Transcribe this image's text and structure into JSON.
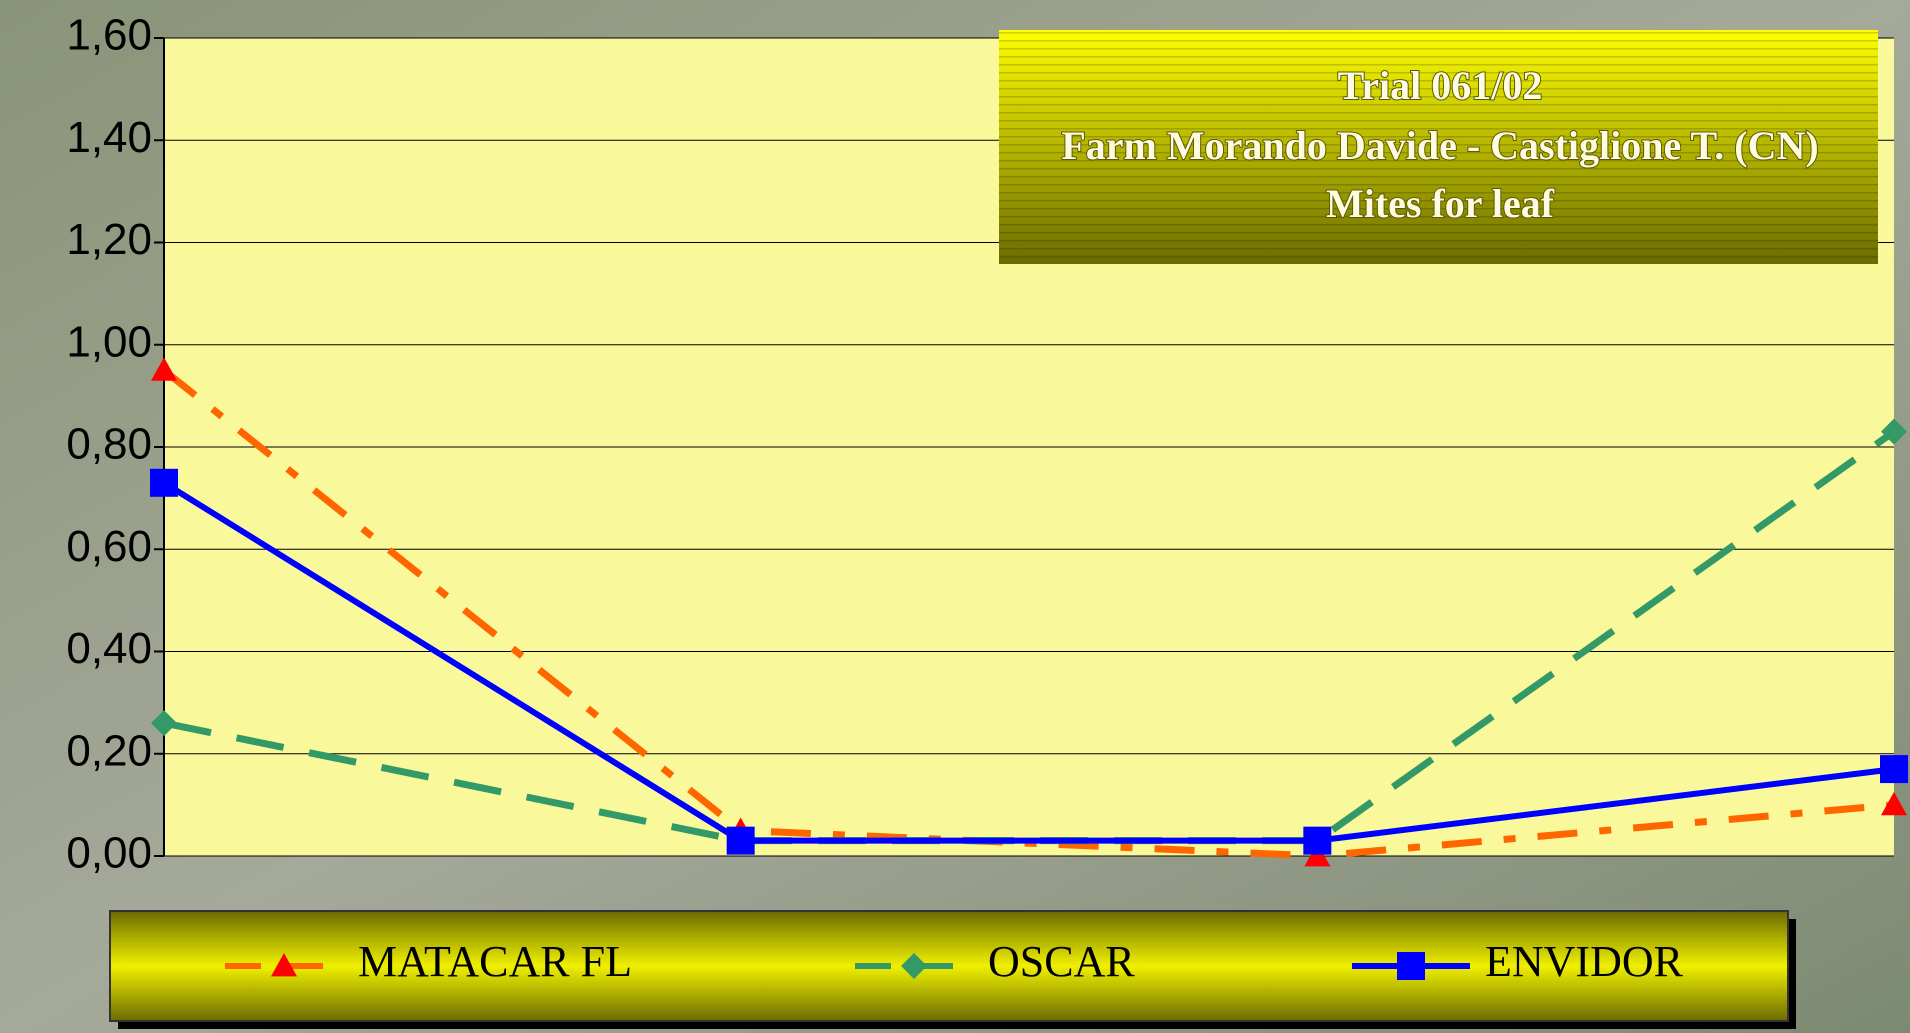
{
  "chart_data": {
    "type": "line",
    "title_lines": [
      "Trial 061/02",
      "Farm Morando Davide - Castiglione T. (CN)",
      "Mites for leaf"
    ],
    "categories": [
      null,
      null,
      null,
      null
    ],
    "series": [
      {
        "name": "MATACAR FL",
        "color": "#ff6600",
        "marker": "triangle",
        "marker_color": "#ff0000",
        "line_style": "dash-dot",
        "values": [
          0.95,
          0.05,
          0.0,
          0.1
        ]
      },
      {
        "name": "OSCAR",
        "color": "#339966",
        "marker": "diamond",
        "marker_color": "#339966",
        "line_style": "dash",
        "values": [
          0.26,
          0.03,
          0.03,
          0.83
        ]
      },
      {
        "name": "ENVIDOR",
        "color": "#0000ff",
        "marker": "square",
        "marker_color": "#0000ff",
        "line_style": "solid",
        "values": [
          0.73,
          0.03,
          0.03,
          0.17
        ]
      }
    ],
    "ylim": [
      0,
      1.6
    ],
    "yticks": [
      {
        "value": 0,
        "label": "0,00"
      },
      {
        "value": 0.2,
        "label": "0,20"
      },
      {
        "value": 0.4,
        "label": "0,40"
      },
      {
        "value": 0.6,
        "label": "0,60"
      },
      {
        "value": 0.8,
        "label": "0,80"
      },
      {
        "value": 1.0,
        "label": "1,00"
      },
      {
        "value": 1.2,
        "label": "1,20"
      },
      {
        "value": 1.4,
        "label": "1,40"
      },
      {
        "value": 1.6,
        "label": "1,60"
      }
    ],
    "grid": true,
    "legend": "bottom"
  }
}
